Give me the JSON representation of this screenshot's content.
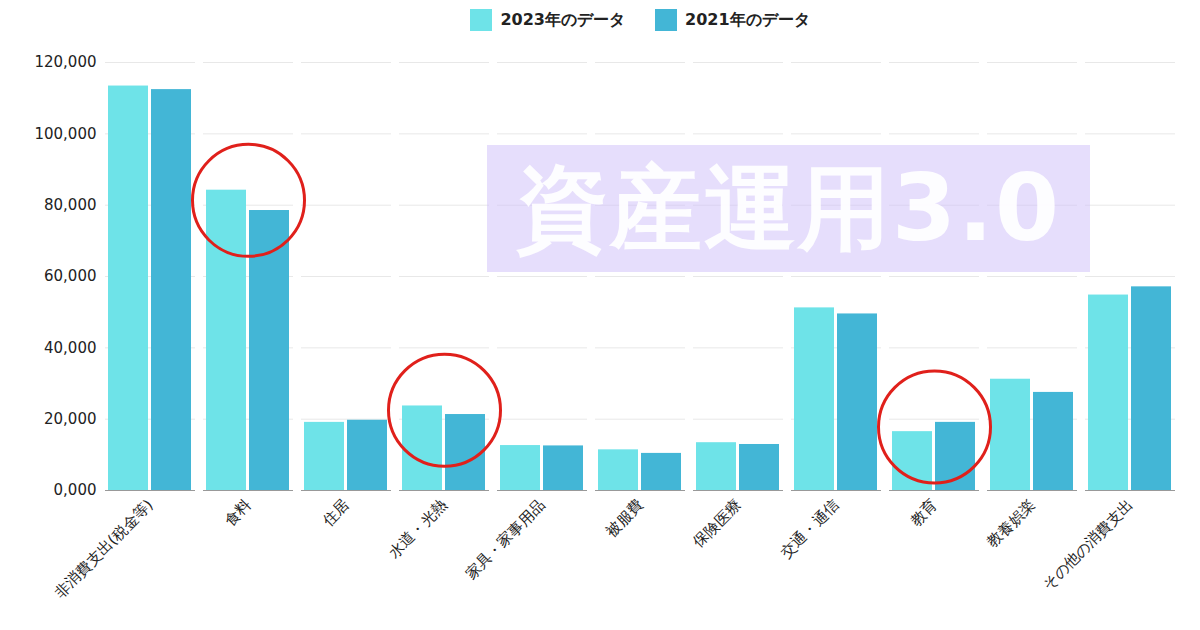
{
  "chart_data": {
    "type": "bar",
    "categories": [
      "非消費支出(税金等)",
      "食料",
      "住居",
      "水道・光熱",
      "家具・家事用品",
      "被服費",
      "保険医療",
      "交通・通信",
      "教育",
      "教養娯楽",
      "その他の消費支出"
    ],
    "series": [
      {
        "name": "2023年のデータ",
        "color": "#6ee3e8",
        "values": [
          113400,
          84200,
          19100,
          23700,
          12600,
          11400,
          13400,
          51200,
          16500,
          31200,
          54800
        ]
      },
      {
        "name": "2021年のデータ",
        "color": "#43b6d6",
        "values": [
          112400,
          78500,
          19700,
          21300,
          12500,
          10400,
          12900,
          49500,
          19100,
          27500,
          57100
        ]
      }
    ],
    "ylim": [
      0,
      120000
    ],
    "yticks": [
      {
        "value": 0,
        "label": "0,000"
      },
      {
        "value": 20000,
        "label": "20,000"
      },
      {
        "value": 40000,
        "label": "40,000"
      },
      {
        "value": 60000,
        "label": "60,000"
      },
      {
        "value": 80000,
        "label": "80,000"
      },
      {
        "value": 100000,
        "label": "100,000"
      },
      {
        "value": 120000,
        "label": "120,000"
      }
    ],
    "grid": true,
    "legend": "top",
    "annotations": [
      {
        "text": "資産運用3.0"
      }
    ]
  }
}
